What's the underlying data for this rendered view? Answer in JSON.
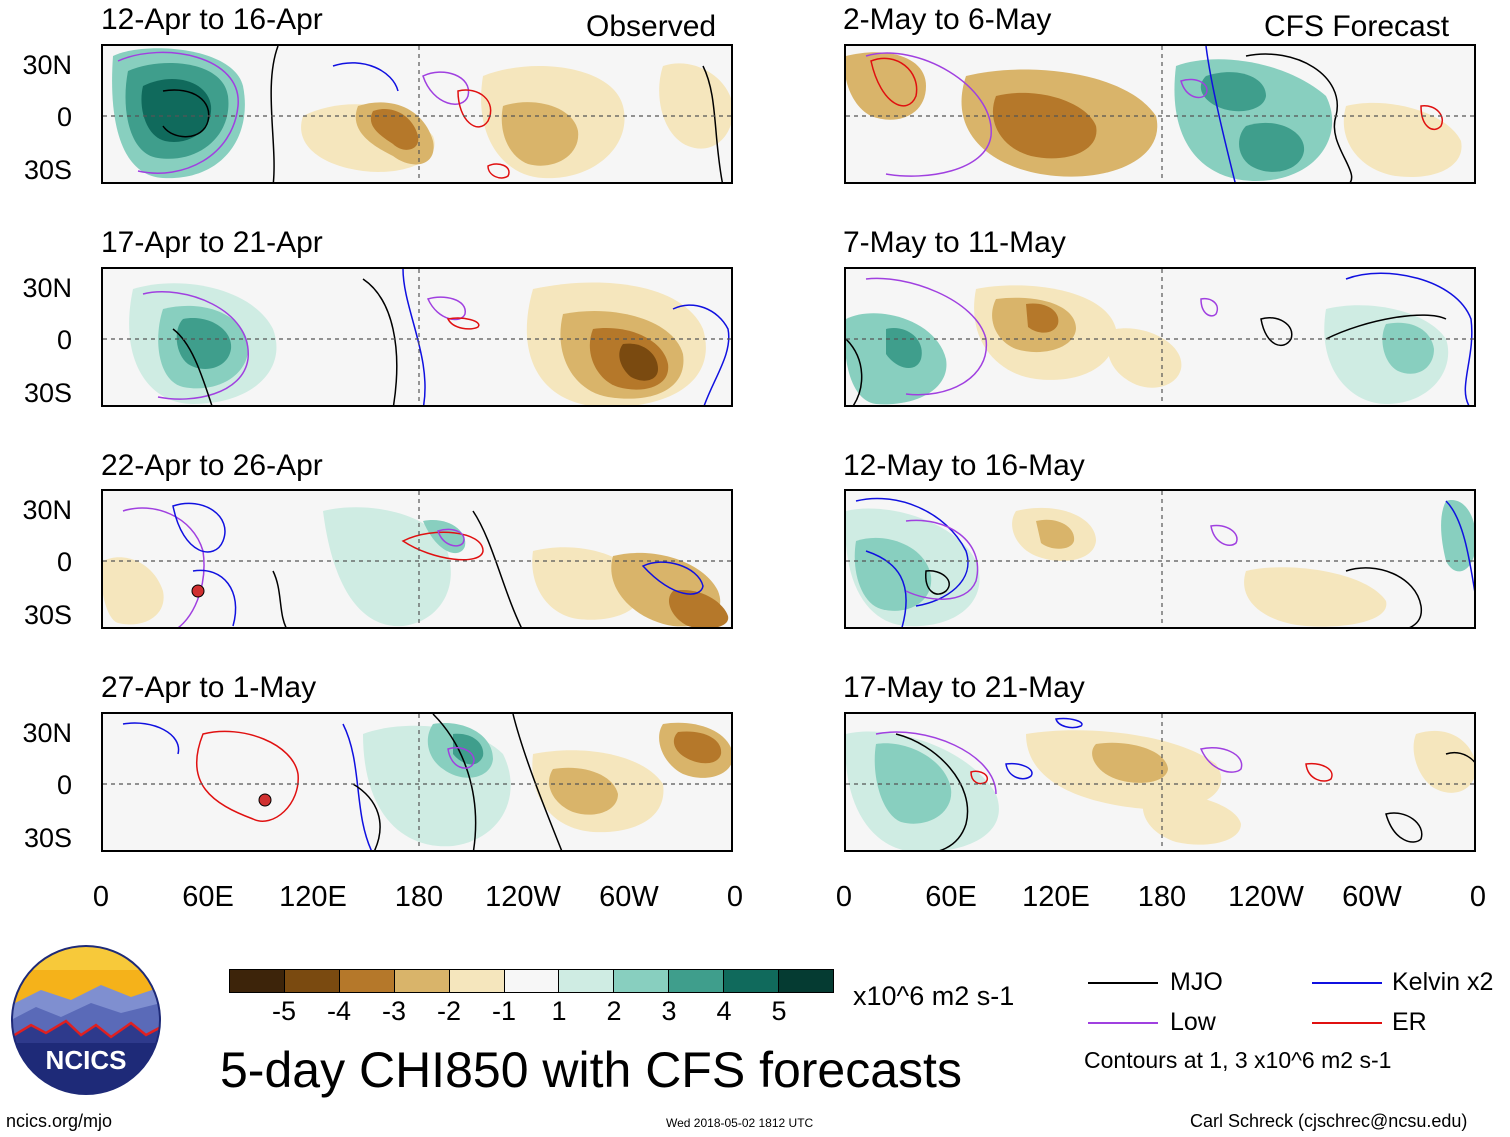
{
  "title": "5-day CHI850 with CFS forecasts",
  "columns": {
    "observed_label": "Observed",
    "forecast_label": "CFS Forecast"
  },
  "panels": {
    "observed": [
      "12-Apr to 16-Apr",
      "17-Apr to 21-Apr",
      "22-Apr to 26-Apr",
      "27-Apr to 1-May"
    ],
    "forecast": [
      "2-May to 6-May",
      "7-May to 11-May",
      "12-May to 16-May",
      "17-May to 21-May"
    ]
  },
  "axes": {
    "lat_labels": [
      "30N",
      "0",
      "30S"
    ],
    "lon_labels": [
      "0",
      "60E",
      "120E",
      "180",
      "120W",
      "60W",
      "0"
    ]
  },
  "colorbar": {
    "unit": "x10^6 m2 s-1",
    "ticks": [
      "-5",
      "-4",
      "-3",
      "-2",
      "-1",
      "1",
      "2",
      "3",
      "4",
      "5"
    ],
    "colors": [
      "#3d240a",
      "#7a4a10",
      "#b5782a",
      "#d9b46a",
      "#f5e6bd",
      "#f7f7f7",
      "#cfece3",
      "#88cfbf",
      "#3f9e8c",
      "#106a5c",
      "#053b32"
    ]
  },
  "legend": {
    "items": [
      {
        "label": "MJO",
        "color": "#000000"
      },
      {
        "label": "Kelvin x2",
        "color": "#1010e0"
      },
      {
        "label": "Low",
        "color": "#a040e0"
      },
      {
        "label": "ER",
        "color": "#e01010"
      }
    ],
    "note": "Contours at 1, 3 x10^6 m2 s-1"
  },
  "footer": {
    "url": "ncics.org/mjo",
    "timestamp": "Wed 2018-05-02 1812 UTC",
    "author": "Carl Schreck (cjschrec@ncsu.edu)",
    "logo_text": "NCICS"
  }
}
